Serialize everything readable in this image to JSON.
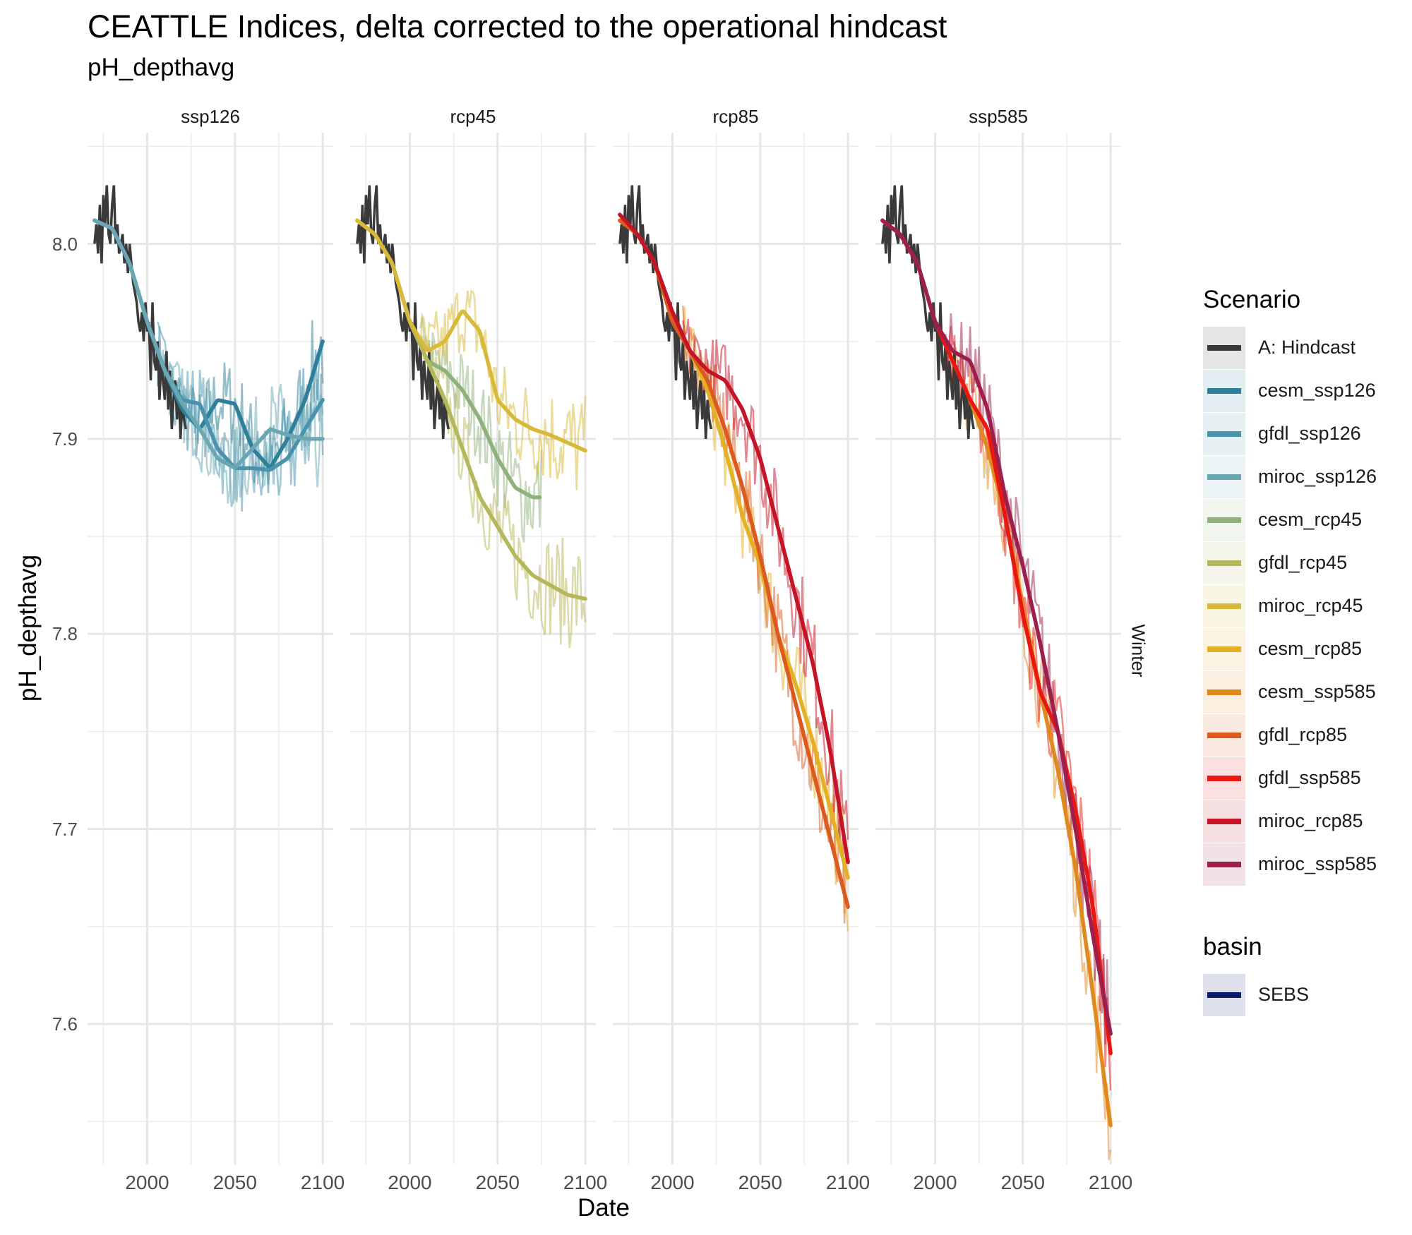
{
  "title": "CEATTLE Indices, delta corrected to the operational hindcast",
  "subtitle": "pH_depthavg",
  "xlabel": "Date",
  "ylabel": "pH_depthavg",
  "strip_right": "Winter",
  "legend": {
    "scenario_title": "Scenario",
    "scenario_items": [
      {
        "label": "A: Hindcast",
        "color": "#3a3a3a"
      },
      {
        "label": "cesm_ssp126",
        "color": "#2e7f9a"
      },
      {
        "label": "gfdl_ssp126",
        "color": "#4a93ad"
      },
      {
        "label": "miroc_ssp126",
        "color": "#6aa7b3"
      },
      {
        "label": "cesm_rcp45",
        "color": "#8fb27c"
      },
      {
        "label": "gfdl_rcp45",
        "color": "#b6b65a"
      },
      {
        "label": "miroc_rcp45",
        "color": "#d8b93a"
      },
      {
        "label": "cesm_rcp85",
        "color": "#e3b026"
      },
      {
        "label": "cesm_ssp585",
        "color": "#e08a1e"
      },
      {
        "label": "gfdl_rcp85",
        "color": "#dc5a1e"
      },
      {
        "label": "gfdl_ssp585",
        "color": "#e8170f"
      },
      {
        "label": "miroc_rcp85",
        "color": "#c41426"
      },
      {
        "label": "miroc_ssp585",
        "color": "#9c1f4e"
      }
    ],
    "basin_title": "basin",
    "basin_items": [
      {
        "label": "SEBS",
        "color": "#0a1a6e"
      }
    ]
  },
  "chart_data": {
    "type": "line",
    "facets": [
      "ssp126",
      "rcp45",
      "rcp85",
      "ssp585"
    ],
    "x_ticks": [
      2000,
      2050,
      2100
    ],
    "y_ticks": [
      7.6,
      7.7,
      7.8,
      7.9,
      8.0
    ],
    "xlim": [
      1966,
      2106
    ],
    "ylim": [
      7.528,
      8.057
    ],
    "grid": true,
    "legend_position": "right",
    "hindcast": {
      "name": "A: Hindcast",
      "x": [
        1970,
        1971,
        1972,
        1973,
        1974,
        1975,
        1976,
        1977,
        1978,
        1979,
        1980,
        1981,
        1982,
        1983,
        1984,
        1985,
        1986,
        1987,
        1988,
        1989,
        1990,
        1991,
        1992,
        1993,
        1994,
        1995,
        1996,
        1997,
        1998,
        1999,
        2000,
        2001,
        2002,
        2003,
        2004,
        2005,
        2006,
        2007,
        2008,
        2009,
        2010,
        2011,
        2012,
        2013,
        2014,
        2015,
        2016,
        2017,
        2018,
        2019,
        2020,
        2021,
        2022
      ],
      "y": [
        8.0,
        8.01,
        7.995,
        8.02,
        7.99,
        8.025,
        8.01,
        8.03,
        8.005,
        8.0,
        8.02,
        8.03,
        8.0,
        8.01,
        7.995,
        8.0,
        8.005,
        7.99,
        8.0,
        7.985,
        8.0,
        7.99,
        7.98,
        7.975,
        7.97,
        7.96,
        7.955,
        7.965,
        7.95,
        7.97,
        7.955,
        7.96,
        7.93,
        7.97,
        7.94,
        7.935,
        7.95,
        7.92,
        7.94,
        7.93,
        7.92,
        7.945,
        7.915,
        7.935,
        7.905,
        7.92,
        7.93,
        7.91,
        7.925,
        7.9,
        7.92,
        7.91,
        7.905
      ]
    },
    "panels": [
      {
        "facet": "ssp126",
        "series": [
          {
            "name": "cesm_ssp126",
            "x": [
              1970,
              1980,
              1990,
              2000,
              2010,
              2020,
              2030,
              2040,
              2050,
              2060,
              2070,
              2080,
              2090,
              2100
            ],
            "y": [
              8.012,
              8.008,
              7.99,
              7.96,
              7.935,
              7.915,
              7.905,
              7.92,
              7.918,
              7.895,
              7.885,
              7.9,
              7.92,
              7.95
            ]
          },
          {
            "name": "gfdl_ssp126",
            "x": [
              1970,
              1980,
              1990,
              2000,
              2010,
              2020,
              2030,
              2040,
              2050,
              2060,
              2070,
              2080,
              2090,
              2100
            ],
            "y": [
              8.012,
              8.008,
              7.99,
              7.96,
              7.935,
              7.92,
              7.918,
              7.895,
              7.885,
              7.885,
              7.884,
              7.89,
              7.905,
              7.92
            ]
          },
          {
            "name": "miroc_ssp126",
            "x": [
              1970,
              1980,
              1990,
              2000,
              2010,
              2020,
              2030,
              2040,
              2050,
              2060,
              2070,
              2080,
              2090,
              2100
            ],
            "y": [
              8.012,
              8.008,
              7.99,
              7.96,
              7.935,
              7.918,
              7.905,
              7.89,
              7.885,
              7.895,
              7.905,
              7.902,
              7.9,
              7.9
            ]
          }
        ]
      },
      {
        "facet": "rcp45",
        "series": [
          {
            "name": "cesm_rcp45",
            "x": [
              1970,
              1980,
              1990,
              2000,
              2010,
              2020,
              2030,
              2040,
              2050,
              2060,
              2070,
              2075
            ],
            "y": [
              8.012,
              8.005,
              7.99,
              7.96,
              7.94,
              7.935,
              7.925,
              7.91,
              7.89,
              7.875,
              7.87,
              7.87
            ]
          },
          {
            "name": "gfdl_rcp45",
            "x": [
              1970,
              1980,
              1990,
              2000,
              2010,
              2020,
              2030,
              2040,
              2050,
              2060,
              2070,
              2080,
              2090,
              2100
            ],
            "y": [
              8.012,
              8.005,
              7.99,
              7.96,
              7.94,
              7.92,
              7.895,
              7.87,
              7.855,
              7.84,
              7.83,
              7.825,
              7.82,
              7.818
            ]
          },
          {
            "name": "miroc_rcp45",
            "x": [
              1970,
              1980,
              1990,
              2000,
              2010,
              2020,
              2030,
              2040,
              2050,
              2060,
              2070,
              2080,
              2090,
              2100
            ],
            "y": [
              8.012,
              8.005,
              7.99,
              7.96,
              7.945,
              7.95,
              7.966,
              7.955,
              7.92,
              7.91,
              7.905,
              7.902,
              7.898,
              7.894
            ]
          }
        ]
      },
      {
        "facet": "rcp85",
        "series": [
          {
            "name": "cesm_rcp85",
            "x": [
              1970,
              1980,
              1990,
              2000,
              2010,
              2020,
              2030,
              2040,
              2050,
              2060,
              2070,
              2080,
              2090,
              2100
            ],
            "y": [
              8.012,
              8.005,
              7.99,
              7.96,
              7.945,
              7.925,
              7.895,
              7.86,
              7.835,
              7.8,
              7.775,
              7.745,
              7.71,
              7.675
            ]
          },
          {
            "name": "gfdl_rcp85",
            "x": [
              1970,
              1980,
              1990,
              2000,
              2010,
              2020,
              2030,
              2040,
              2050,
              2060,
              2070,
              2080,
              2090,
              2100
            ],
            "y": [
              8.012,
              8.005,
              7.99,
              7.96,
              7.945,
              7.93,
              7.905,
              7.875,
              7.84,
              7.8,
              7.765,
              7.73,
              7.695,
              7.66
            ]
          },
          {
            "name": "miroc_rcp85",
            "x": [
              1970,
              1980,
              1990,
              2000,
              2010,
              2020,
              2030,
              2040,
              2050,
              2060,
              2070,
              2080,
              2090,
              2100
            ],
            "y": [
              8.015,
              8.005,
              7.99,
              7.965,
              7.945,
              7.935,
              7.93,
              7.915,
              7.89,
              7.855,
              7.82,
              7.785,
              7.74,
              7.683
            ]
          }
        ]
      },
      {
        "facet": "ssp585",
        "series": [
          {
            "name": "cesm_ssp585",
            "x": [
              1970,
              1980,
              1990,
              2000,
              2010,
              2020,
              2030,
              2040,
              2050,
              2060,
              2070,
              2080,
              2090,
              2100
            ],
            "y": [
              8.012,
              8.005,
              7.99,
              7.96,
              7.94,
              7.92,
              7.895,
              7.86,
              7.815,
              7.77,
              7.73,
              7.68,
              7.615,
              7.548
            ]
          },
          {
            "name": "gfdl_ssp585",
            "x": [
              1970,
              1980,
              1990,
              2000,
              2010,
              2020,
              2030,
              2040,
              2050,
              2060,
              2070,
              2080,
              2090,
              2100
            ],
            "y": [
              8.012,
              8.005,
              7.99,
              7.96,
              7.94,
              7.92,
              7.905,
              7.86,
              7.81,
              7.77,
              7.75,
              7.71,
              7.66,
              7.585
            ]
          },
          {
            "name": "miroc_ssp585",
            "x": [
              1970,
              1980,
              1990,
              2000,
              2010,
              2020,
              2030,
              2040,
              2050,
              2060,
              2070,
              2080,
              2090,
              2100
            ],
            "y": [
              8.012,
              8.005,
              7.99,
              7.96,
              7.945,
              7.94,
              7.915,
              7.87,
              7.835,
              7.795,
              7.75,
              7.7,
              7.645,
              7.595
            ]
          }
        ]
      }
    ]
  }
}
